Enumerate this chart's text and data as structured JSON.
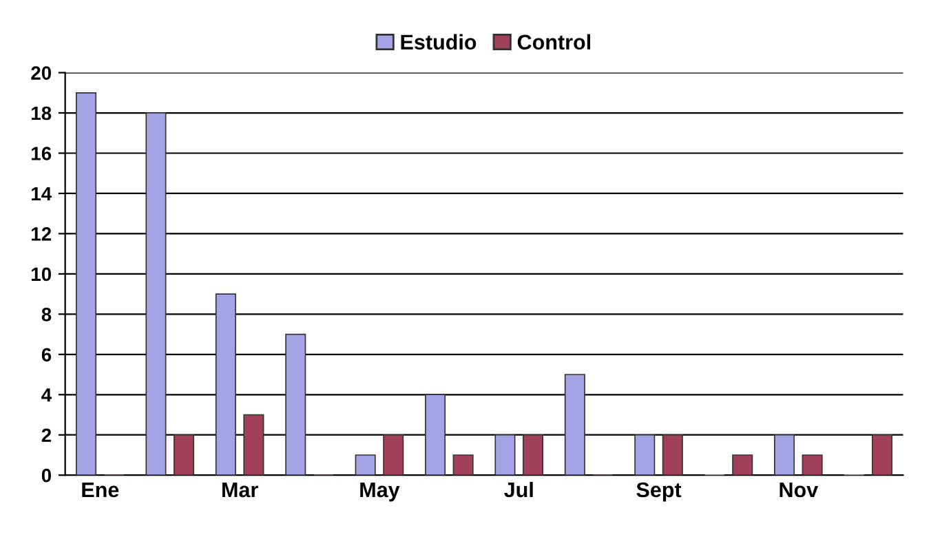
{
  "chart_data": {
    "type": "bar",
    "categories": [
      "Ene",
      null,
      "Mar",
      null,
      "May",
      null,
      "Jul",
      null,
      "Sept",
      null,
      "Nov",
      null
    ],
    "series": [
      {
        "name": "Estudio",
        "color": "#a3a3e6",
        "values": [
          19,
          18,
          9,
          7,
          1,
          4,
          2,
          5,
          2,
          0,
          2,
          0
        ]
      },
      {
        "name": "Control",
        "color": "#a0405a",
        "values": [
          0,
          2,
          3,
          0,
          2,
          1,
          2,
          0,
          2,
          1,
          1,
          2
        ]
      }
    ],
    "ylim": [
      0,
      20
    ],
    "yticks": [
      0,
      2,
      4,
      6,
      8,
      10,
      12,
      14,
      16,
      18,
      20
    ],
    "grid": "y",
    "legend": "top"
  }
}
